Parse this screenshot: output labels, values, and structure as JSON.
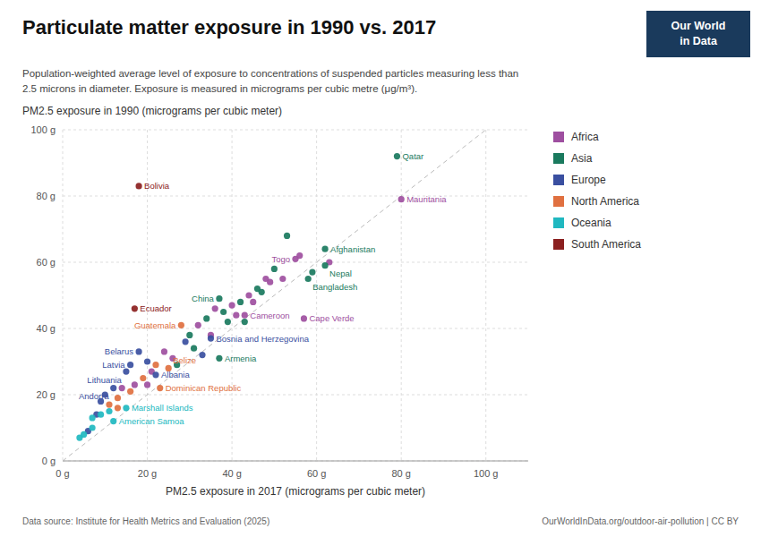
{
  "chart_data": {
    "type": "scatter",
    "title": "Particulate matter exposure in 1990 vs. 2017",
    "subtitle": "Population-weighted average level of exposure to concentrations of suspended particles measuring less than\n2.5 microns in diameter. Exposure is measured in micrograms per cubic metre (μg/m³).",
    "x_label": "PM2.5 exposure in 2017 (micrograms per cubic meter)",
    "y_label": "PM2.5 exposure in 1990 (micrograms per cubic meter)",
    "source": "Data source: Institute for Health Metrics and Evaluation (2025)",
    "source_url": "OurWorldInData.org/outdoor-air-pollution | CC BY",
    "logo": [
      "Our World",
      "in Data"
    ],
    "logo_color": "#1a3a5c",
    "xlim": [
      0,
      110
    ],
    "ylim": [
      0,
      100
    ],
    "xticks": [
      {
        "value": 0,
        "label": "0 g"
      },
      {
        "value": 20,
        "label": "20 g"
      },
      {
        "value": 40,
        "label": "40 g"
      },
      {
        "value": 60,
        "label": "60 g"
      },
      {
        "value": 80,
        "label": "80 g"
      },
      {
        "value": 100,
        "label": "100 g"
      }
    ],
    "yticks": [
      {
        "value": 0,
        "label": "0 g"
      },
      {
        "value": 20,
        "label": "20 g"
      },
      {
        "value": 40,
        "label": "40 g"
      },
      {
        "value": 60,
        "label": "60 g"
      },
      {
        "value": 80,
        "label": "80 g"
      },
      {
        "value": 100,
        "label": "100 g"
      }
    ],
    "grid": true,
    "legend": "right",
    "reference_line": {
      "x": [
        0,
        100
      ],
      "values": [
        0,
        100
      ],
      "color": "#bbbbbb",
      "line_style": "dashed"
    },
    "series": [
      {
        "name": "Africa",
        "color": "#9e4fa0",
        "x": [
          80,
          55,
          43,
          57,
          14,
          17,
          20,
          21,
          24,
          26,
          32,
          35,
          36,
          40,
          41,
          44,
          45,
          48,
          49,
          52,
          56,
          63
        ],
        "values": [
          79,
          61,
          44,
          43,
          22,
          23,
          23,
          27,
          33,
          31,
          41,
          38,
          46,
          47,
          44,
          50,
          48,
          55,
          54,
          55,
          62,
          60
        ],
        "labels": [
          "Mauritania",
          "Togo",
          "Cameroon",
          "Cape Verde",
          null,
          null,
          null,
          null,
          null,
          null,
          null,
          null,
          null,
          null,
          null,
          null,
          null,
          null,
          null,
          null,
          null,
          null
        ]
      },
      {
        "name": "Asia",
        "color": "#1a7a5e",
        "x": [
          79,
          62,
          62,
          58,
          37,
          37,
          27,
          30,
          31,
          34,
          38,
          39,
          42,
          43,
          46,
          47,
          50,
          53,
          59
        ],
        "values": [
          92,
          64,
          59,
          55,
          49,
          31,
          29,
          38,
          34,
          43,
          45,
          42,
          48,
          42,
          52,
          51,
          58,
          68,
          57
        ],
        "labels": [
          "Qatar",
          "Afghanistan",
          "Nepal",
          "Bangladesh",
          "China",
          "Armenia",
          null,
          null,
          null,
          null,
          null,
          null,
          null,
          null,
          null,
          null,
          null,
          null,
          null
        ]
      },
      {
        "name": "Europe",
        "color": "#3a4fa0",
        "x": [
          35,
          18,
          16,
          15,
          22,
          12,
          6,
          8,
          9,
          10,
          20,
          29,
          33
        ],
        "values": [
          37,
          33,
          29,
          27,
          26,
          22,
          9,
          14,
          18,
          20,
          30,
          36,
          32
        ],
        "labels": [
          "Bosnia and Herzegovina",
          "Belarus",
          "Latvia",
          "Lithuania",
          "Albania",
          "Andorra",
          null,
          null,
          null,
          null,
          null,
          null,
          null
        ]
      },
      {
        "name": "North America",
        "color": "#e07040",
        "x": [
          28,
          23,
          25,
          11,
          13,
          13,
          16,
          19,
          22
        ],
        "values": [
          41,
          22,
          28,
          17,
          16,
          19,
          21,
          25,
          29
        ],
        "labels": [
          "Guatemala",
          "Dominican Republic",
          "Belize",
          null,
          null,
          null,
          null,
          null,
          null
        ]
      },
      {
        "name": "Oceania",
        "color": "#20b8c0",
        "x": [
          15,
          12,
          4,
          5,
          7,
          7,
          9,
          11
        ],
        "values": [
          16,
          12,
          7,
          8,
          10,
          13,
          14,
          15
        ],
        "labels": [
          "Marshall Islands",
          "American Samoa",
          null,
          null,
          null,
          null,
          null,
          null
        ]
      },
      {
        "name": "South America",
        "color": "#8b2020",
        "x": [
          18,
          17
        ],
        "values": [
          83,
          46
        ],
        "labels": [
          "Bolivia",
          "Ecuador"
        ]
      }
    ]
  }
}
